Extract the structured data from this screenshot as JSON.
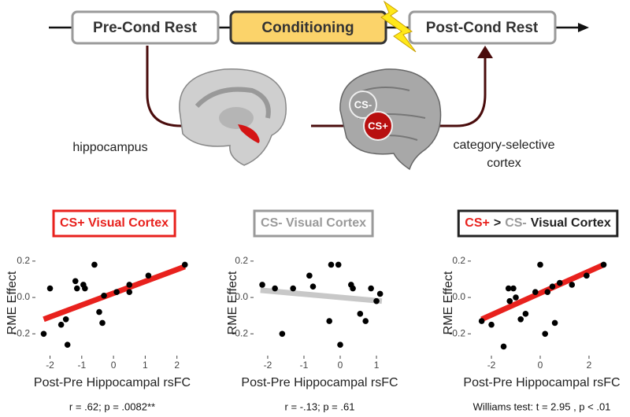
{
  "diagram": {
    "stages": [
      "Pre-Cond Rest",
      "Conditioning",
      "Post-Cond Rest"
    ],
    "region_left": "hippocampus",
    "region_right": [
      "category-selective",
      "cortex"
    ],
    "cs_minus": "CS-",
    "cs_plus": "CS+"
  },
  "chart_data": [
    {
      "type": "scatter",
      "title_parts": [
        {
          "text": "CS+ Visual Cortex",
          "color": "#e8211d"
        }
      ],
      "title_border": "#e8211d",
      "x_label": "Post-Pre Hippocampal rsFC",
      "y_label": "RME Effect",
      "stats": "r = .62; p = .0082**",
      "x": [
        -2.2,
        -2.0,
        -1.65,
        -1.5,
        -1.45,
        -1.2,
        -1.15,
        -0.95,
        -0.9,
        -0.6,
        -0.45,
        -0.35,
        -0.3,
        0.1,
        0.5,
        0.5,
        1.1,
        2.25
      ],
      "values": [
        -0.2,
        0.05,
        -0.15,
        -0.12,
        -0.26,
        0.09,
        0.05,
        0.07,
        0.05,
        0.18,
        -0.08,
        -0.14,
        0.01,
        0.03,
        0.07,
        0.03,
        0.12,
        0.18
      ],
      "color": "#000000",
      "fit_x": [
        -2.2,
        2.25
      ],
      "fit_y": [
        -0.12,
        0.17
      ],
      "fit_color": "#e8211d",
      "xlim": [
        -2.46,
        2.38
      ],
      "ylim": [
        -0.32,
        0.26
      ],
      "xticks": [
        -2,
        -1,
        0,
        1,
        2
      ],
      "yticks": [
        -0.2,
        {
          "value": 0,
          "label": "0.0"
        },
        0.2
      ]
    },
    {
      "type": "scatter",
      "title_parts": [
        {
          "text": "CS- Visual Cortex",
          "color": "#9a9a9a"
        }
      ],
      "title_border": "#9a9a9a",
      "x_label": "Post-Pre Hippocampal rsFC",
      "y_label": "RME Effect",
      "stats": "r = -.13; p = .61",
      "x": [
        -2.15,
        -1.8,
        -1.6,
        -1.3,
        -0.85,
        -0.75,
        -0.3,
        -0.25,
        -0.05,
        0.0,
        0.3,
        0.35,
        0.55,
        0.7,
        0.85,
        1.0,
        1.1
      ],
      "values": [
        0.07,
        0.05,
        -0.2,
        0.05,
        0.12,
        0.06,
        -0.13,
        0.18,
        0.18,
        -0.26,
        0.07,
        0.05,
        -0.09,
        -0.13,
        0.05,
        -0.02,
        0.02
      ],
      "color": "#000000",
      "fit_x": [
        -2.2,
        1.15
      ],
      "fit_y": [
        0.04,
        -0.02
      ],
      "fit_color": "#c8c8c8",
      "xlim": [
        -2.39,
        1.26
      ],
      "ylim": [
        -0.32,
        0.26
      ],
      "xticks": [
        -2,
        -1,
        0,
        1
      ],
      "yticks": [
        -0.2,
        {
          "value": 0,
          "label": "0.0"
        },
        0.2
      ]
    },
    {
      "type": "scatter",
      "title_parts": [
        {
          "text": "CS+",
          "color": "#e8211d"
        },
        {
          "text": ">",
          "color": "#222222"
        },
        {
          "text": "CS-",
          "color": "#9a9a9a"
        },
        {
          "text": "Visual Cortex",
          "color": "#222222"
        }
      ],
      "title_border": "#222222",
      "x_label": "Post-Pre Hippocampal rsFC",
      "y_label": "RME Effect",
      "stats": "Williams test: t = 2.95 , p < .01",
      "x": [
        -2.4,
        -2.0,
        -1.5,
        -1.3,
        -1.25,
        -1.1,
        -1.0,
        -0.8,
        -0.6,
        -0.2,
        0.0,
        0.2,
        0.3,
        0.5,
        0.6,
        0.8,
        1.3,
        1.9,
        2.6
      ],
      "values": [
        -0.13,
        -0.15,
        -0.27,
        0.05,
        -0.02,
        0.05,
        0.0,
        -0.12,
        -0.09,
        0.03,
        0.18,
        -0.2,
        0.03,
        0.06,
        -0.14,
        0.08,
        0.07,
        0.12,
        0.18
      ],
      "color": "#000000",
      "fit_x": [
        -2.4,
        2.6
      ],
      "fit_y": [
        -0.12,
        0.18
      ],
      "fit_color": "#e8211d",
      "xlim": [
        -2.84,
        2.97
      ],
      "ylim": [
        -0.32,
        0.26
      ],
      "xticks": [
        -2,
        0,
        2
      ],
      "yticks": [
        -0.2,
        {
          "value": 0,
          "label": "0.0"
        },
        0.2
      ]
    }
  ]
}
